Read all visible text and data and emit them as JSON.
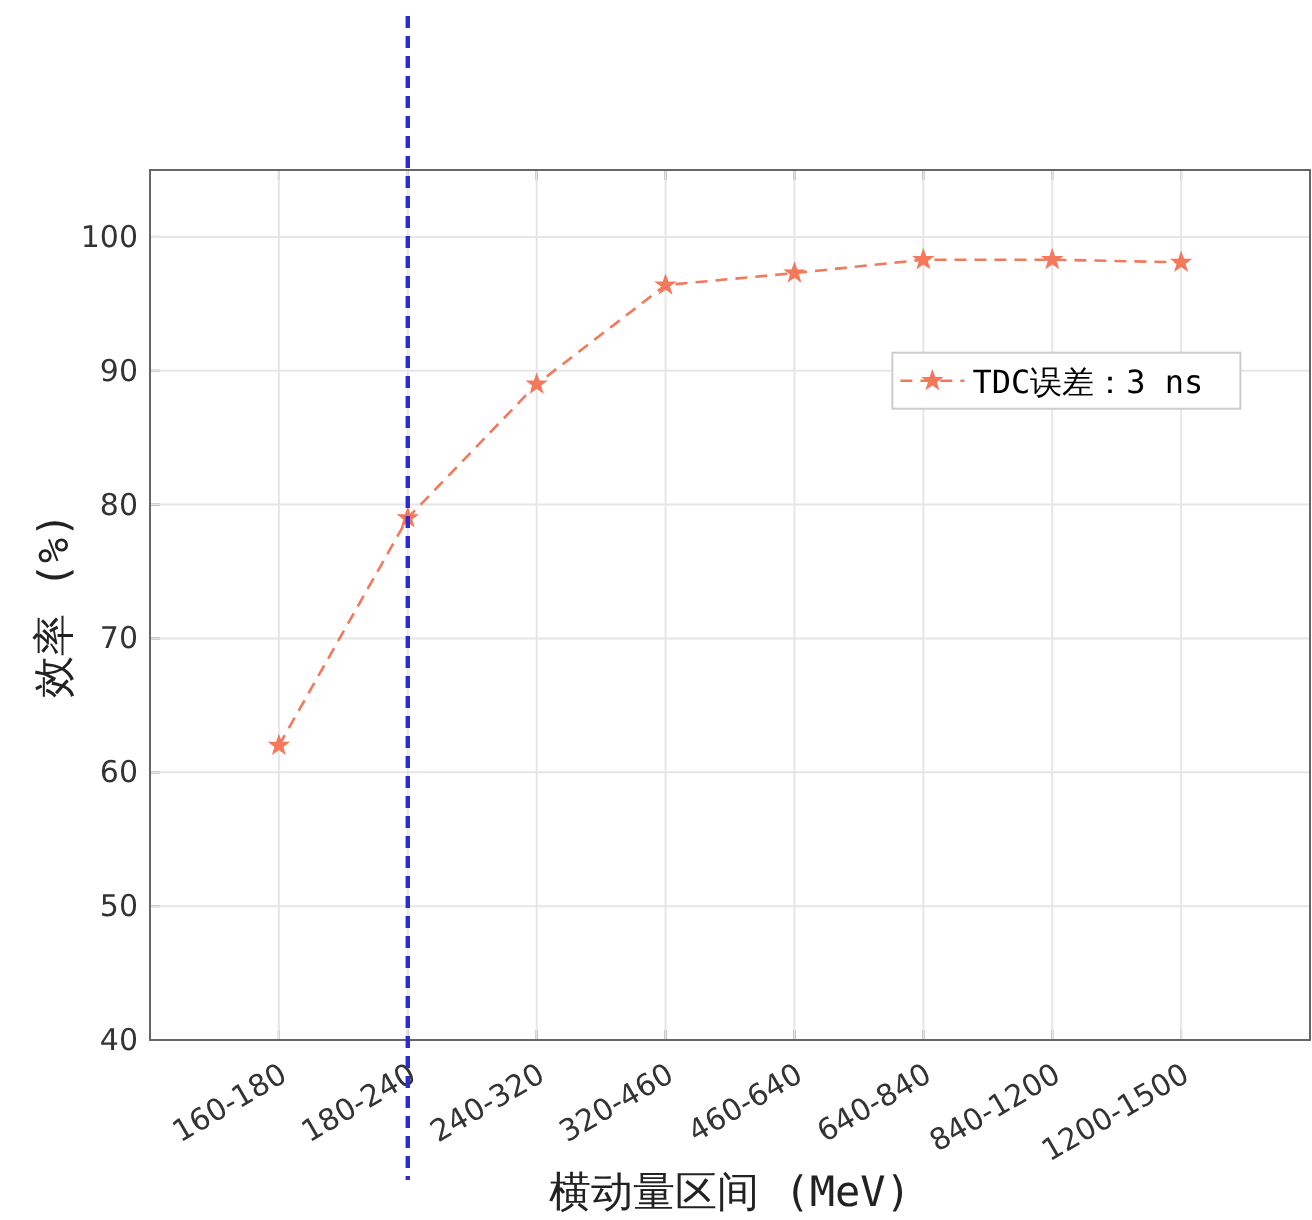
{
  "chart_data": {
    "type": "line",
    "xlabel": "横动量区间 (MeV)",
    "ylabel": "效率 (%)",
    "categories": [
      "160-180",
      "180-240",
      "240-320",
      "320-460",
      "460-640",
      "640-840",
      "840-1200",
      "1200-1500"
    ],
    "series": [
      {
        "name": "TDC误差：3 ns",
        "color": "#f4785a",
        "values": [
          62,
          79,
          89,
          96.4,
          97.3,
          98.3,
          98.3,
          98.1
        ]
      }
    ],
    "ylim": [
      40,
      105
    ],
    "yticks": [
      40,
      50,
      60,
      70,
      80,
      90,
      100
    ],
    "ref_lines": [
      {
        "axis": "x",
        "value": "180-240",
        "color": "#2b2bd0",
        "line_style": "dashed"
      }
    ],
    "grid": true,
    "legend": "right",
    "marker": "star",
    "line_style": "dashed"
  }
}
